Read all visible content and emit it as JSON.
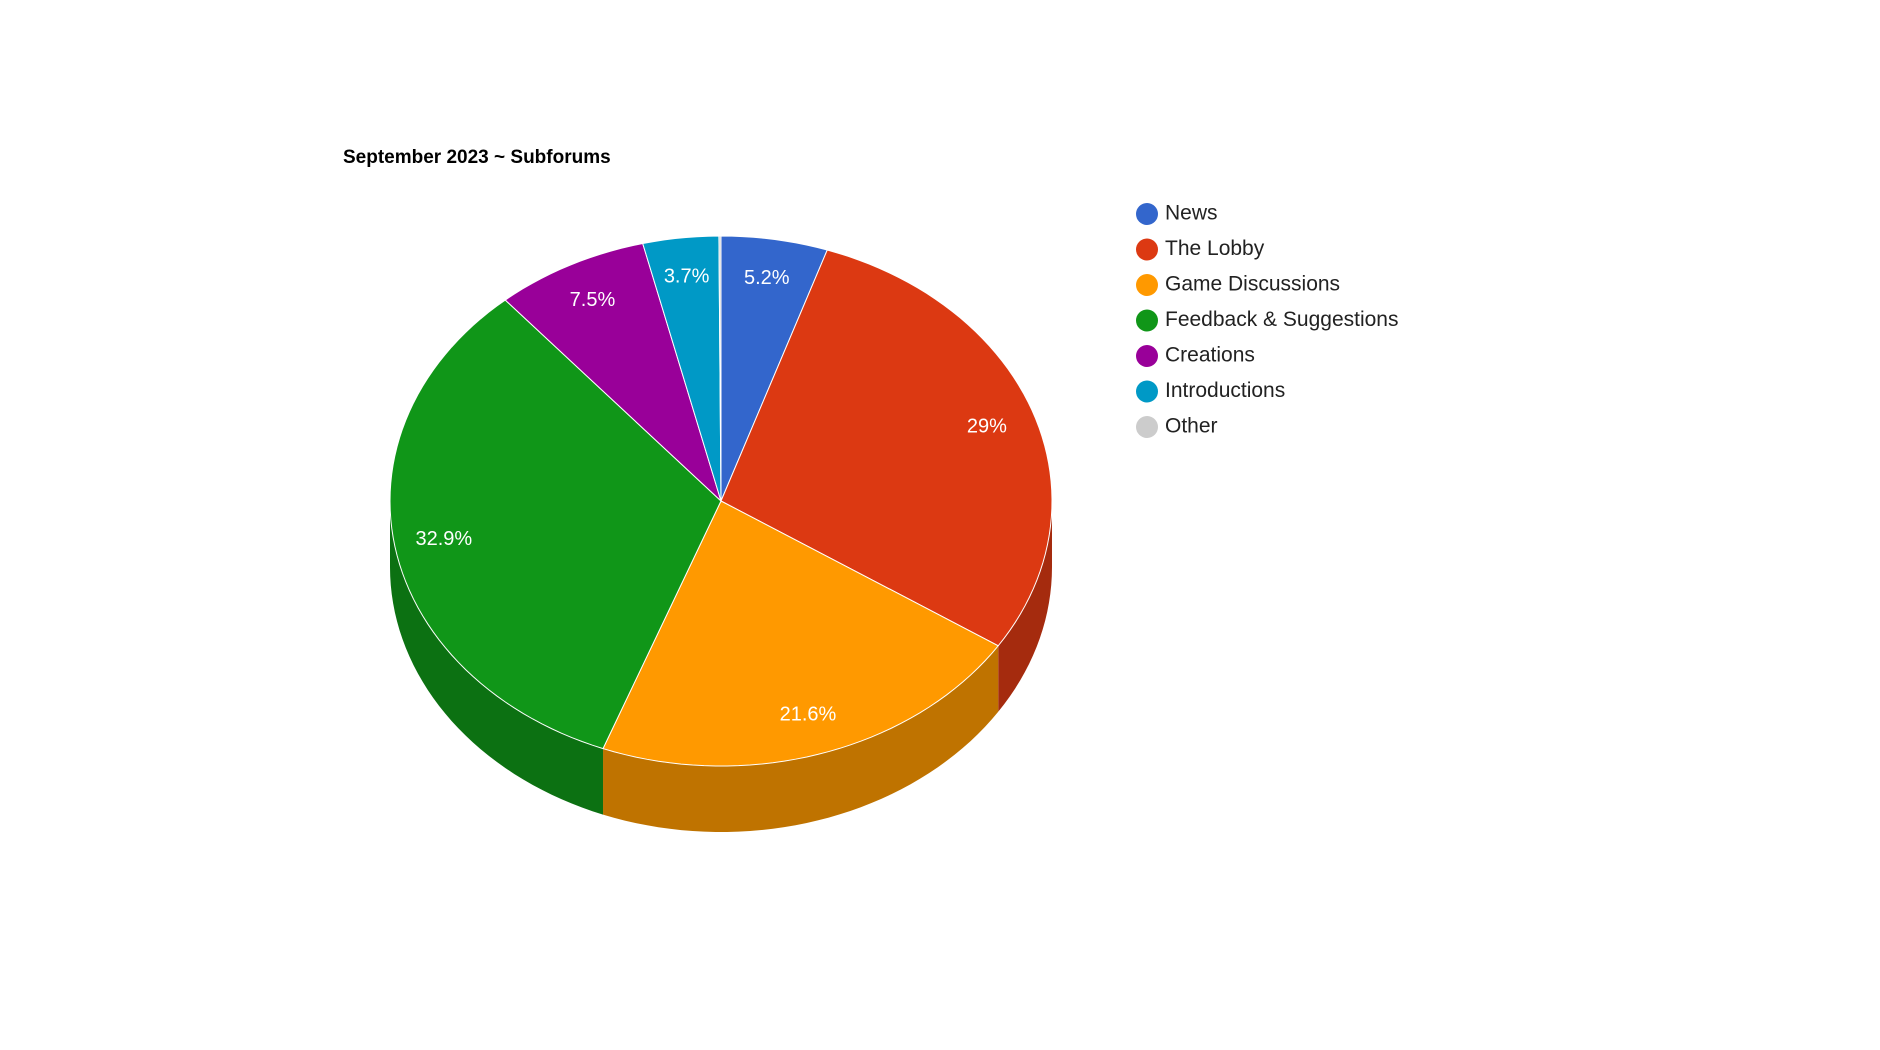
{
  "chart_data": {
    "type": "pie3d",
    "title": "September 2023 ~ Subforums",
    "categories": [
      "News",
      "The Lobby",
      "Game Discussions",
      "Feedback & Suggestions",
      "Creations",
      "Introductions",
      "Other"
    ],
    "values": [
      5.2,
      29,
      21.6,
      32.9,
      7.5,
      3.7,
      0.1
    ],
    "value_labels": [
      "5.2%",
      "29%",
      "21.6%",
      "32.9%",
      "7.5%",
      "3.7%",
      null
    ],
    "colors": [
      "#3366cc",
      "#dc3912",
      "#ff9900",
      "#109618",
      "#990099",
      "#0099c6",
      "#cccccc"
    ],
    "legend": "right"
  }
}
